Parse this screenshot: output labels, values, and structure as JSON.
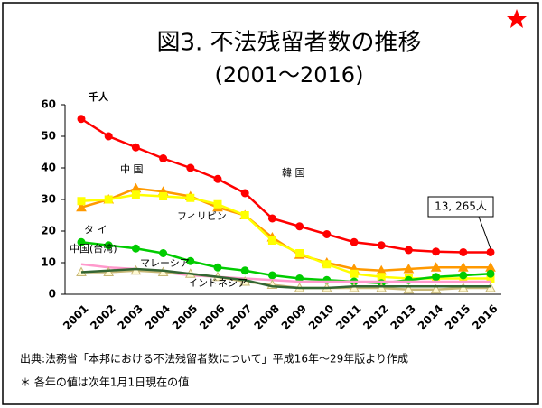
{
  "chart_data": {
    "type": "line",
    "title": "図3. 不法残留者数の推移",
    "subtitle": "(2001〜2016)",
    "y_label": "千人",
    "categories": [
      "2001",
      "2002",
      "2003",
      "2004",
      "2005",
      "2006",
      "2007",
      "2008",
      "2009",
      "2010",
      "2011",
      "2012",
      "2013",
      "2014",
      "2015",
      "2016"
    ],
    "series": [
      {
        "name": "韓 国",
        "color": "#ff0000",
        "marker": "circle",
        "values": [
          55.5,
          50,
          46.5,
          43,
          40,
          36.5,
          32,
          24,
          21.5,
          19,
          16.5,
          15.5,
          14,
          13.5,
          13.3,
          13.3
        ]
      },
      {
        "name": "中 国",
        "color": "#ff9900",
        "marker": "triangle",
        "values": [
          27.5,
          30,
          33.5,
          32.5,
          31,
          27.5,
          25,
          18,
          12.5,
          10,
          8,
          7.5,
          8,
          8.5,
          8.5,
          8.5
        ]
      },
      {
        "name": "フィリピン",
        "color": "#ffff00",
        "marker": "square",
        "values": [
          29.5,
          30,
          31.5,
          31,
          30.5,
          28.5,
          25,
          17,
          13,
          9.5,
          6.5,
          5.5,
          5,
          5,
          5,
          5
        ]
      },
      {
        "name": "タ イ",
        "color": "#00cc00",
        "marker": "circle",
        "values": [
          16.5,
          15.5,
          14.5,
          13,
          10.5,
          8.5,
          7.5,
          6,
          5,
          4.5,
          4,
          3.5,
          4.5,
          5.5,
          6,
          6.5
        ]
      },
      {
        "name": "中国(台湾)",
        "color": "#ff99cc",
        "marker": "none",
        "values": [
          9.5,
          8.5,
          8,
          7,
          6,
          5.5,
          5,
          4.5,
          4,
          4,
          4,
          4,
          4,
          4,
          4,
          4
        ]
      },
      {
        "name": "マレーシア",
        "color": "#c8b878",
        "marker": "triangle",
        "values": [
          7,
          7,
          7.5,
          7,
          6.5,
          5.5,
          4,
          3,
          2,
          2,
          2,
          2,
          1.5,
          1.5,
          2,
          2
        ]
      },
      {
        "name": "インドネシア",
        "color": "#336633",
        "marker": "none",
        "values": [
          7,
          7.5,
          8,
          7.5,
          6.5,
          5.5,
          4.5,
          2.5,
          2,
          2,
          2.5,
          2.5,
          2.5,
          2.5,
          2.5,
          2.5
        ]
      }
    ],
    "annotation": "13, 265人",
    "ylim": [
      0,
      60
    ],
    "yticks": [
      0,
      10,
      20,
      30,
      40,
      50,
      60
    ],
    "source": "出典:法務省「本邦における不法残留者数について」平成16年〜29年版より作成",
    "note": "＊ 各年の値は次年1月1日現在の値"
  }
}
